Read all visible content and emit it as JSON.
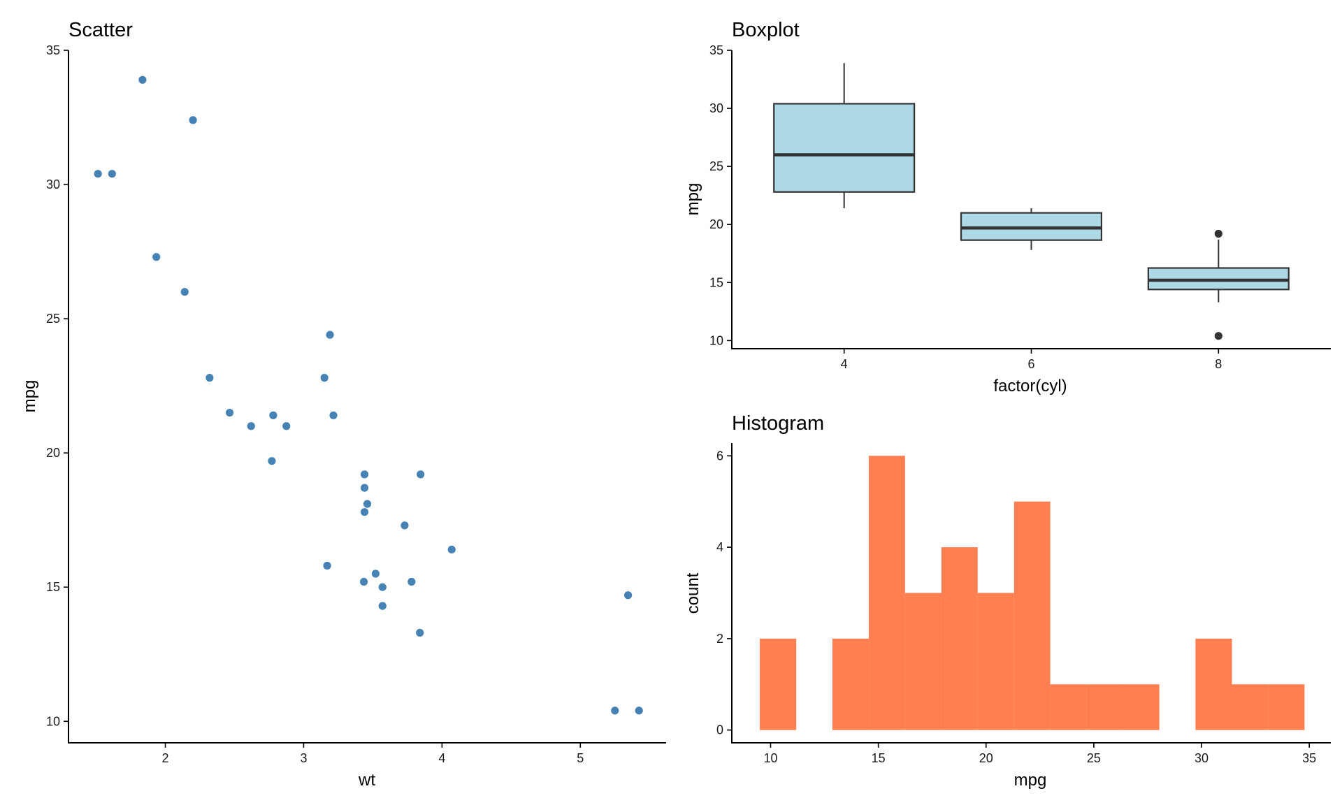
{
  "colors": {
    "scatter_point": "#4682b4",
    "box_fill": "#add8e6",
    "box_line": "#333333",
    "hist_fill": "#ff7f50"
  },
  "chart_data": [
    {
      "id": "scatter",
      "type": "scatter",
      "title": "Scatter",
      "xlabel": "wt",
      "ylabel": "mpg",
      "xlim": [
        1.3,
        5.62
      ],
      "ylim": [
        9.2,
        35.0
      ],
      "xticks": [
        2,
        3,
        4,
        5
      ],
      "yticks": [
        10,
        15,
        20,
        25,
        30,
        35
      ],
      "x": [
        2.62,
        2.875,
        2.32,
        3.215,
        3.44,
        3.46,
        3.57,
        3.19,
        3.15,
        3.44,
        3.44,
        4.07,
        3.73,
        3.78,
        5.25,
        5.424,
        5.345,
        2.2,
        1.615,
        1.835,
        2.465,
        3.52,
        3.435,
        3.84,
        3.845,
        1.935,
        2.14,
        1.513,
        3.17,
        2.77,
        3.57,
        2.78
      ],
      "y": [
        21.0,
        21.0,
        22.8,
        21.4,
        18.7,
        18.1,
        14.3,
        24.4,
        22.8,
        19.2,
        17.8,
        16.4,
        17.3,
        15.2,
        10.4,
        10.4,
        14.7,
        32.4,
        30.4,
        33.9,
        21.5,
        15.5,
        15.2,
        13.3,
        19.2,
        27.3,
        26.0,
        30.4,
        15.8,
        19.7,
        15.0,
        21.4
      ]
    },
    {
      "id": "boxplot",
      "type": "box",
      "title": "Boxplot",
      "xlabel": "factor(cyl)",
      "ylabel": "mpg",
      "categories": [
        "4",
        "6",
        "8"
      ],
      "ylim": [
        9.3,
        35.0
      ],
      "yticks": [
        10,
        15,
        20,
        25,
        30,
        35
      ],
      "boxes": [
        {
          "category": "4",
          "q1": 22.8,
          "median": 26.0,
          "q3": 30.4,
          "whisker_low": 21.4,
          "whisker_high": 33.9,
          "outliers": []
        },
        {
          "category": "6",
          "q1": 18.65,
          "median": 19.7,
          "q3": 21.0,
          "whisker_low": 17.8,
          "whisker_high": 21.4,
          "outliers": []
        },
        {
          "category": "8",
          "q1": 14.4,
          "median": 15.2,
          "q3": 16.25,
          "whisker_low": 13.3,
          "whisker_high": 18.7,
          "outliers": [
            19.2,
            10.4
          ]
        }
      ]
    },
    {
      "id": "histogram",
      "type": "bar",
      "title": "Histogram",
      "xlabel": "mpg",
      "ylabel": "count",
      "xlim": [
        8.2,
        36.0
      ],
      "ylim": [
        -0.28,
        6.28
      ],
      "xticks": [
        10,
        15,
        20,
        25,
        30,
        35
      ],
      "yticks": [
        0,
        2,
        4,
        6
      ],
      "bin_edges": [
        9.5,
        11.19,
        12.87,
        14.56,
        16.24,
        17.93,
        19.61,
        21.3,
        22.98,
        24.67,
        26.35,
        28.04,
        29.72,
        31.41,
        33.09,
        34.78
      ],
      "counts": [
        2,
        0,
        2,
        6,
        3,
        4,
        3,
        5,
        1,
        1,
        1,
        0,
        2,
        1,
        1
      ]
    }
  ]
}
